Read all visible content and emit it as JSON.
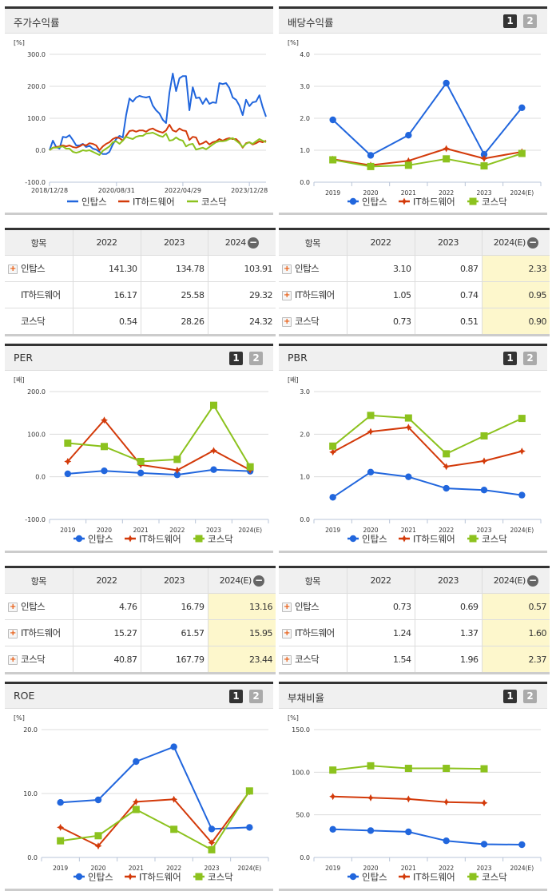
{
  "colors": {
    "series1": "#2166dd",
    "series2": "#d33a0a",
    "series3": "#8cc21e",
    "highlight": "#fdf7cc"
  },
  "pager": {
    "page1": "1",
    "page2": "2"
  },
  "collapse_icon": "minus-circle-icon",
  "expand_icon": "plus-box-icon",
  "panels": {
    "stock_return": {
      "title": "주가수익률"
    },
    "dividend": {
      "title": "배당수익률"
    },
    "per": {
      "title": "PER"
    },
    "pbr": {
      "title": "PBR"
    },
    "roe": {
      "title": "ROE"
    },
    "debt": {
      "title": "부채비율"
    }
  },
  "tables": {
    "stock_return": {
      "headers": [
        "항목",
        "2022",
        "2023",
        "2024"
      ],
      "highlight_last": false,
      "rows": [
        {
          "name": "인탑스",
          "expandable": true,
          "values": [
            "141.30",
            "134.78",
            "103.91"
          ]
        },
        {
          "name": "IT하드웨어",
          "expandable": false,
          "values": [
            "16.17",
            "25.58",
            "29.32"
          ]
        },
        {
          "name": "코스닥",
          "expandable": false,
          "values": [
            "0.54",
            "28.26",
            "24.32"
          ]
        }
      ]
    },
    "dividend": {
      "headers": [
        "항목",
        "2022",
        "2023",
        "2024(E)"
      ],
      "highlight_last": true,
      "rows": [
        {
          "name": "인탑스",
          "expandable": true,
          "values": [
            "3.10",
            "0.87",
            "2.33"
          ]
        },
        {
          "name": "IT하드웨어",
          "expandable": true,
          "values": [
            "1.05",
            "0.74",
            "0.95"
          ]
        },
        {
          "name": "코스닥",
          "expandable": true,
          "values": [
            "0.73",
            "0.51",
            "0.90"
          ]
        }
      ]
    },
    "per": {
      "headers": [
        "항목",
        "2022",
        "2023",
        "2024(E)"
      ],
      "highlight_last": true,
      "rows": [
        {
          "name": "인탑스",
          "expandable": true,
          "values": [
            "4.76",
            "16.79",
            "13.16"
          ]
        },
        {
          "name": "IT하드웨어",
          "expandable": true,
          "values": [
            "15.27",
            "61.57",
            "15.95"
          ]
        },
        {
          "name": "코스닥",
          "expandable": true,
          "values": [
            "40.87",
            "167.79",
            "23.44"
          ]
        }
      ]
    },
    "pbr": {
      "headers": [
        "항목",
        "2022",
        "2023",
        "2024(E)"
      ],
      "highlight_last": true,
      "rows": [
        {
          "name": "인탑스",
          "expandable": true,
          "values": [
            "0.73",
            "0.69",
            "0.57"
          ]
        },
        {
          "name": "IT하드웨어",
          "expandable": true,
          "values": [
            "1.24",
            "1.37",
            "1.60"
          ]
        },
        {
          "name": "코스닥",
          "expandable": true,
          "values": [
            "1.54",
            "1.96",
            "2.37"
          ]
        }
      ]
    }
  },
  "chart_data": [
    {
      "id": "stock_return",
      "type": "line",
      "unit": "[%]",
      "ylim": [
        -100,
        300
      ],
      "yticks": [
        "300.0",
        "200.0",
        "100.0",
        "0.0",
        "-100.0"
      ],
      "ytick_values": [
        300,
        200,
        100,
        0,
        -100
      ],
      "xticks": [
        "2018/12/28",
        "2020/08/31",
        "2022/04/29",
        "2023/12/28"
      ],
      "legend": "bottom",
      "grid": true,
      "x": [
        "2018-12",
        "2019-01",
        "2019-02",
        "2019-03",
        "2019-04",
        "2019-05",
        "2019-06",
        "2019-07",
        "2019-08",
        "2019-09",
        "2019-10",
        "2019-11",
        "2019-12",
        "2020-01",
        "2020-02",
        "2020-03",
        "2020-04",
        "2020-05",
        "2020-06",
        "2020-07",
        "2020-08",
        "2020-09",
        "2020-10",
        "2020-11",
        "2020-12",
        "2021-01",
        "2021-02",
        "2021-03",
        "2021-04",
        "2021-05",
        "2021-06",
        "2021-07",
        "2021-08",
        "2021-09",
        "2021-10",
        "2021-11",
        "2021-12",
        "2022-01",
        "2022-02",
        "2022-03",
        "2022-04",
        "2022-05",
        "2022-06",
        "2022-07",
        "2022-08",
        "2022-09",
        "2022-10",
        "2022-11",
        "2022-12",
        "2023-01",
        "2023-02",
        "2023-03",
        "2023-04",
        "2023-05",
        "2023-06",
        "2023-07",
        "2023-08",
        "2023-09",
        "2023-10",
        "2023-11",
        "2023-12",
        "2024-01",
        "2024-02",
        "2024-03",
        "2024-04",
        "2024-05"
      ],
      "series": [
        {
          "name": "인탑스",
          "marker": "none",
          "values": [
            0,
            30,
            10,
            5,
            42,
            40,
            47,
            32,
            15,
            15,
            20,
            10,
            14,
            5,
            2,
            -5,
            -12,
            -12,
            -5,
            18,
            35,
            45,
            40,
            110,
            162,
            152,
            165,
            170,
            167,
            165,
            168,
            140,
            125,
            115,
            95,
            85,
            180,
            240,
            185,
            225,
            232,
            232,
            125,
            197,
            163,
            165,
            145,
            162,
            145,
            150,
            148,
            210,
            207,
            210,
            195,
            165,
            158,
            140,
            110,
            158,
            138,
            150,
            152,
            172,
            135,
            105
          ]
        },
        {
          "name": "IT하드웨어",
          "marker": "none",
          "values": [
            0,
            8,
            10,
            12,
            15,
            12,
            15,
            10,
            8,
            12,
            18,
            15,
            22,
            20,
            15,
            0,
            12,
            20,
            25,
            35,
            40,
            38,
            30,
            45,
            60,
            62,
            58,
            62,
            62,
            58,
            65,
            68,
            62,
            58,
            55,
            62,
            80,
            62,
            58,
            68,
            62,
            60,
            32,
            42,
            40,
            18,
            22,
            28,
            18,
            25,
            28,
            35,
            30,
            35,
            38,
            35,
            35,
            25,
            8,
            22,
            25,
            18,
            22,
            28,
            25,
            30
          ]
        },
        {
          "name": "코스닥",
          "marker": "none",
          "values": [
            0,
            8,
            8,
            10,
            12,
            5,
            5,
            -5,
            -8,
            -5,
            0,
            -2,
            0,
            -5,
            -10,
            -15,
            -2,
            5,
            12,
            25,
            28,
            20,
            30,
            42,
            38,
            35,
            42,
            45,
            45,
            52,
            53,
            55,
            50,
            45,
            42,
            52,
            30,
            32,
            40,
            33,
            30,
            12,
            18,
            20,
            2,
            5,
            8,
            3,
            10,
            18,
            25,
            28,
            28,
            30,
            35,
            38,
            30,
            22,
            10,
            20,
            25,
            20,
            28,
            35,
            30,
            25
          ]
        }
      ]
    },
    {
      "id": "dividend",
      "type": "line",
      "unit": "[%]",
      "ylim": [
        0,
        4
      ],
      "yticks": [
        "4.0",
        "3.0",
        "2.0",
        "1.0",
        "0.0"
      ],
      "ytick_values": [
        4,
        3,
        2,
        1,
        0
      ],
      "categories": [
        "2019",
        "2020",
        "2021",
        "2022",
        "2023",
        "2024(E)"
      ],
      "legend": "bottom",
      "grid": true,
      "series": [
        {
          "name": "인탑스",
          "marker": "circle",
          "values": [
            1.95,
            0.84,
            1.47,
            3.1,
            0.87,
            2.33
          ]
        },
        {
          "name": "IT하드웨어",
          "marker": "diamond",
          "values": [
            0.72,
            0.53,
            0.67,
            1.05,
            0.74,
            0.95
          ]
        },
        {
          "name": "코스닥",
          "marker": "square",
          "values": [
            0.7,
            0.49,
            0.53,
            0.73,
            0.51,
            0.9
          ]
        }
      ]
    },
    {
      "id": "per",
      "type": "line",
      "unit": "[배]",
      "ylim": [
        -100,
        200
      ],
      "yticks": [
        "200.0",
        "100.0",
        "0.0",
        "-100.0"
      ],
      "ytick_values": [
        200,
        100,
        0,
        -100
      ],
      "categories": [
        "2019",
        "2020",
        "2021",
        "2022",
        "2023",
        "2024(E)"
      ],
      "legend": "bottom",
      "grid": true,
      "series": [
        {
          "name": "인탑스",
          "marker": "circle",
          "values": [
            7,
            14,
            9,
            4.76,
            16.79,
            13.16
          ]
        },
        {
          "name": "IT하드웨어",
          "marker": "diamond",
          "values": [
            36,
            133,
            28,
            15.27,
            61.57,
            15.95
          ]
        },
        {
          "name": "코스닥",
          "marker": "square",
          "values": [
            79,
            71,
            36,
            40.87,
            167.79,
            23.44
          ]
        }
      ]
    },
    {
      "id": "pbr",
      "type": "line",
      "unit": "[배]",
      "ylim": [
        0,
        3
      ],
      "yticks": [
        "3.0",
        "2.0",
        "1.0",
        "0.0"
      ],
      "ytick_values": [
        3,
        2,
        1,
        0
      ],
      "categories": [
        "2019",
        "2020",
        "2021",
        "2022",
        "2023",
        "2024(E)"
      ],
      "legend": "bottom",
      "grid": true,
      "series": [
        {
          "name": "인탑스",
          "marker": "circle",
          "values": [
            0.52,
            1.11,
            1.0,
            0.73,
            0.69,
            0.57
          ]
        },
        {
          "name": "IT하드웨어",
          "marker": "diamond",
          "values": [
            1.58,
            2.06,
            2.16,
            1.24,
            1.37,
            1.6
          ]
        },
        {
          "name": "코스닥",
          "marker": "square",
          "values": [
            1.72,
            2.44,
            2.38,
            1.54,
            1.96,
            2.37
          ]
        }
      ]
    },
    {
      "id": "roe",
      "type": "line",
      "unit": "[%]",
      "ylim": [
        0,
        20
      ],
      "yticks": [
        "20.0",
        "10.0",
        "0.0"
      ],
      "ytick_values": [
        20,
        10,
        0
      ],
      "categories": [
        "2019",
        "2020",
        "2021",
        "2022",
        "2023",
        "2024(E)"
      ],
      "legend": "bottom",
      "grid": true,
      "series": [
        {
          "name": "인탑스",
          "marker": "circle",
          "values": [
            8.6,
            9.0,
            15.0,
            17.3,
            4.45,
            4.7
          ]
        },
        {
          "name": "IT하드웨어",
          "marker": "diamond",
          "values": [
            4.7,
            1.8,
            8.7,
            9.1,
            2.3,
            10.3
          ]
        },
        {
          "name": "코스닥",
          "marker": "square",
          "values": [
            2.6,
            3.4,
            7.5,
            4.4,
            1.2,
            10.4
          ]
        }
      ]
    },
    {
      "id": "debt",
      "type": "line",
      "unit": "[%]",
      "ylim": [
        0,
        150
      ],
      "yticks": [
        "150.0",
        "100.0",
        "50.0",
        "0.0"
      ],
      "ytick_values": [
        150,
        100,
        50,
        0
      ],
      "categories": [
        "2019",
        "2020",
        "2021",
        "2022",
        "2023",
        "2024(E)"
      ],
      "legend": "bottom",
      "grid": true,
      "series": [
        {
          "name": "인탑스",
          "marker": "circle",
          "values": [
            33,
            31.5,
            30,
            19.5,
            15.5,
            15
          ]
        },
        {
          "name": "IT하드웨어",
          "marker": "diamond",
          "values": [
            71.5,
            70,
            68.5,
            65,
            64,
            null
          ]
        },
        {
          "name": "코스닥",
          "marker": "square",
          "values": [
            102.5,
            107.5,
            104.5,
            104.5,
            104,
            null
          ]
        }
      ]
    }
  ]
}
